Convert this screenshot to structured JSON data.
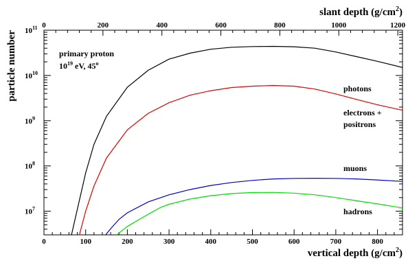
{
  "chart_data": {
    "type": "line",
    "xlabel": "vertical depth (g/cm",
    "xlabel_sup": "2",
    "xlabel_end": ")",
    "x2label": "slant depth (g/cm",
    "x2label_sup": "2",
    "x2label_end": ")",
    "ylabel": "particle number",
    "xlim": [
      0,
      860
    ],
    "x2lim": [
      0,
      1216
    ],
    "ylim": [
      3000000,
      100000000000
    ],
    "y_scale": "log",
    "x_ticks": [
      "0",
      "100",
      "200",
      "300",
      "400",
      "500",
      "600",
      "700",
      "800"
    ],
    "x2_ticks": [
      "0",
      "200",
      "400",
      "600",
      "800",
      "1000",
      "1200"
    ],
    "y_ticks": [
      {
        "base": "10",
        "exp": "7"
      },
      {
        "base": "10",
        "exp": "8"
      },
      {
        "base": "10",
        "exp": "9"
      },
      {
        "base": "10",
        "exp": "10"
      },
      {
        "base": "10",
        "exp": "11"
      }
    ],
    "annotations": {
      "line1": "primary proton",
      "line2_base": "10",
      "line2_exp": "19",
      "line2_rest": " eV, 45",
      "line2_deg": "o"
    },
    "series": [
      {
        "name": "photons",
        "color": "#000000",
        "x": [
          66,
          80,
          100,
          120,
          150,
          200,
          250,
          300,
          350,
          400,
          450,
          500,
          550,
          600,
          650,
          700,
          750,
          800,
          860
        ],
        "y": [
          3000000,
          11000000,
          70000000,
          300000000,
          1250000000,
          5500000000,
          13000000000,
          23000000000,
          31000000000,
          38000000000,
          42000000000,
          43500000000,
          44000000000,
          43000000000,
          40000000000,
          33000000000,
          26000000000,
          20500000000,
          15000000000
        ]
      },
      {
        "name": "electrons +",
        "name2": "positrons",
        "color": "#e00000",
        "x": [
          85,
          100,
          120,
          150,
          200,
          250,
          300,
          350,
          400,
          450,
          500,
          550,
          600,
          650,
          700,
          750,
          800,
          860
        ],
        "y": [
          3000000,
          10000000,
          36000000,
          150000000,
          630000000,
          1450000000,
          2500000000,
          3650000000,
          4600000000,
          5400000000,
          5800000000,
          6000000000,
          5800000000,
          5000000000,
          3900000000,
          2950000000,
          2250000000,
          1700000000
        ]
      },
      {
        "name": "muons",
        "color": "#0000cc",
        "x": [
          148,
          160,
          180,
          200,
          250,
          300,
          350,
          400,
          450,
          500,
          550,
          600,
          650,
          700,
          750,
          800,
          860
        ],
        "y": [
          3000000,
          4100000,
          6600000,
          9200000,
          16000000,
          23000000,
          30000000,
          37000000,
          43000000,
          48000000,
          51500000,
          53000000,
          53500000,
          53000000,
          51500000,
          49000000,
          45500000
        ]
      },
      {
        "name": "hadrons",
        "color": "#00dd00",
        "x": [
          175,
          185,
          200,
          230,
          260,
          280,
          300,
          350,
          400,
          450,
          500,
          550,
          600,
          650,
          700,
          750,
          800,
          860
        ],
        "y": [
          3000000,
          3600000,
          4600000,
          6700000,
          9600000,
          12200000,
          14200000,
          18500000,
          22000000,
          24500000,
          25800000,
          26000000,
          25000000,
          23000000,
          20000000,
          17000000,
          14500000,
          11800000
        ]
      }
    ]
  }
}
